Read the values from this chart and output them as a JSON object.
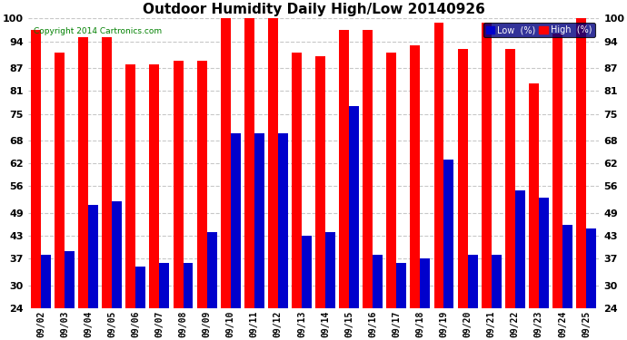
{
  "title": "Outdoor Humidity Daily High/Low 20140926",
  "copyright": "Copyright 2014 Cartronics.com",
  "categories": [
    "09/02",
    "09/03",
    "09/04",
    "09/05",
    "09/06",
    "09/07",
    "09/08",
    "09/09",
    "09/10",
    "09/11",
    "09/12",
    "09/13",
    "09/14",
    "09/15",
    "09/16",
    "09/17",
    "09/18",
    "09/19",
    "09/20",
    "09/21",
    "09/22",
    "09/23",
    "09/24",
    "09/25"
  ],
  "high_values": [
    97,
    91,
    95,
    95,
    88,
    88,
    89,
    89,
    100,
    100,
    100,
    91,
    90,
    97,
    97,
    91,
    93,
    99,
    92,
    99,
    92,
    83,
    96,
    100
  ],
  "low_values": [
    38,
    39,
    51,
    52,
    35,
    36,
    36,
    44,
    70,
    70,
    70,
    43,
    44,
    77,
    38,
    36,
    37,
    63,
    38,
    38,
    55,
    53,
    46,
    45
  ],
  "high_color": "#FF0000",
  "low_color": "#0000CC",
  "bg_color": "#FFFFFF",
  "grid_color": "#C8C8C8",
  "yticks": [
    24,
    30,
    37,
    43,
    49,
    56,
    62,
    68,
    75,
    81,
    87,
    94,
    100
  ],
  "ymin": 24,
  "ymax": 100,
  "title_fontsize": 11,
  "legend_low_label": "Low  (%)",
  "legend_high_label": "High  (%)"
}
